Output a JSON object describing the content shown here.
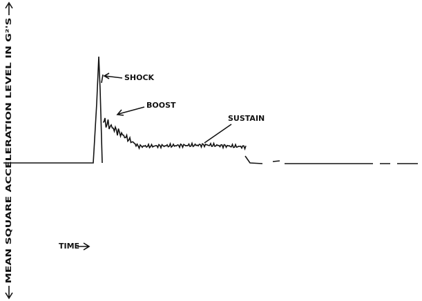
{
  "axis_label": "MEAN SQUARE ACCELERATION LEVEL IN G²'S",
  "labels": {
    "shock": "SHOCK",
    "boost": "BOOST",
    "sustain": "SUSTAIN",
    "time": "TIME"
  }
}
